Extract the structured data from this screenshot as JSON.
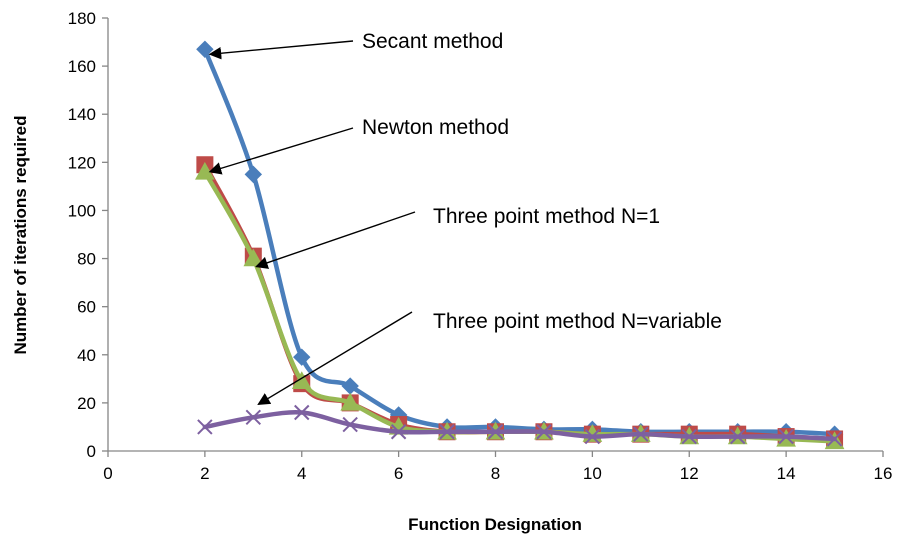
{
  "chart_data": {
    "type": "line",
    "title": "",
    "xlabel": "Function Designation",
    "ylabel": "Number of iterations required",
    "xlim": [
      0,
      16
    ],
    "ylim": [
      0,
      180
    ],
    "xticks": [
      0,
      2,
      4,
      6,
      8,
      10,
      12,
      14,
      16
    ],
    "yticks": [
      0,
      20,
      40,
      60,
      80,
      100,
      120,
      140,
      160,
      180
    ],
    "grid": false,
    "legend": "none",
    "x": [
      2,
      3,
      4,
      5,
      6,
      7,
      8,
      9,
      10,
      11,
      12,
      13,
      14,
      15
    ],
    "series": [
      {
        "name": "Secant method",
        "color": "#4a7ebb",
        "marker": "diamond",
        "values": [
          167,
          115,
          39,
          27,
          15,
          10,
          10,
          9,
          9,
          8,
          8,
          8,
          8,
          7
        ]
      },
      {
        "name": "Newton method",
        "color": "#be4b48",
        "marker": "square",
        "values": [
          119,
          81,
          28,
          20,
          11,
          8,
          8,
          8,
          7,
          7,
          7,
          7,
          6,
          5
        ]
      },
      {
        "name": "Three point method N=1",
        "color": "#98b954",
        "marker": "triangle",
        "values": [
          116,
          80,
          29,
          20,
          10,
          8,
          8,
          8,
          7,
          7,
          6,
          6,
          5,
          4
        ]
      },
      {
        "name": "Three point method N=variable",
        "color": "#7d60a0",
        "marker": "x",
        "values": [
          10,
          14,
          16,
          11,
          8,
          8,
          8,
          8,
          6,
          7,
          6,
          6,
          6,
          5
        ]
      }
    ],
    "annotations": [
      {
        "text": "Secant method",
        "series": 0,
        "point_index": 0
      },
      {
        "text": "Newton method",
        "series": 1,
        "point_index": 0
      },
      {
        "text": "Three point method N=1",
        "series": 2,
        "point_index": 1
      },
      {
        "text": "Three point method N=variable",
        "series": 3,
        "point_index": 1
      }
    ]
  }
}
